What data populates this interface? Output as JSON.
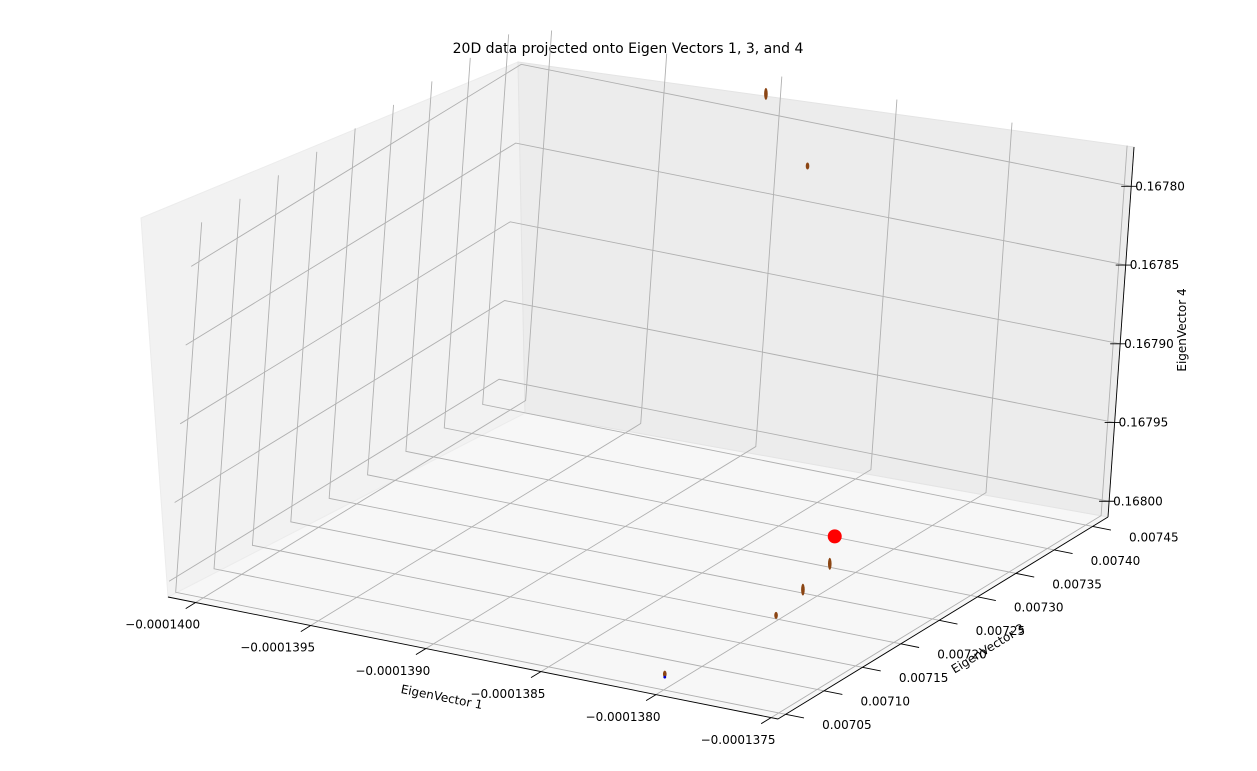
{
  "chart_data": {
    "type": "scatter",
    "title": "20D data projected onto Eigen Vectors 1, 3, and 4",
    "xlabel": "EigenVector 1",
    "ylabel": "EigenVector 3",
    "zlabel": "EigenVector 4",
    "projection": "3d",
    "xlim": [
      -0.00014012,
      -0.00013747
    ],
    "ylim": [
      0.00704,
      0.00747
    ],
    "zlim": [
      0.167775,
      0.16801
    ],
    "zaxis_inverted": true,
    "grid": true,
    "x_ticks": [
      "−0.0001400",
      "−0.0001395",
      "−0.0001390",
      "−0.0001385",
      "−0.0001380",
      "−0.0001375"
    ],
    "y_ticks": [
      "0.00705",
      "0.00710",
      "0.00715",
      "0.00720",
      "0.00725",
      "0.00730",
      "0.00735",
      "0.00740",
      "0.00745"
    ],
    "z_ticks": [
      "0.16780",
      "0.16785",
      "0.16790",
      "0.16795",
      "0.16800"
    ],
    "colors": {
      "cluster": "#8b4513",
      "highlight": "#ff0000",
      "outlier": "#0000cc"
    },
    "series": [
      {
        "points": [
          {
            "x": -0.00013805,
            "y": 0.00728,
            "z": 0.168
          },
          {
            "x": -0.000138,
            "y": 0.00723,
            "z": 0.168
          },
          {
            "x": -0.00013795,
            "y": 0.00718,
            "z": 0.168
          },
          {
            "x": -0.000138,
            "y": 0.00705,
            "z": 0.168
          },
          {
            "x": -0.000139,
            "y": 0.00745,
            "z": 0.16778
          },
          {
            "x": -0.0001388,
            "y": 0.00745,
            "z": 0.16782
          }
        ]
      },
      {
        "points": [
          {
            "x": -0.0001381,
            "y": 0.0073,
            "z": 0.16799
          }
        ]
      }
    ]
  }
}
